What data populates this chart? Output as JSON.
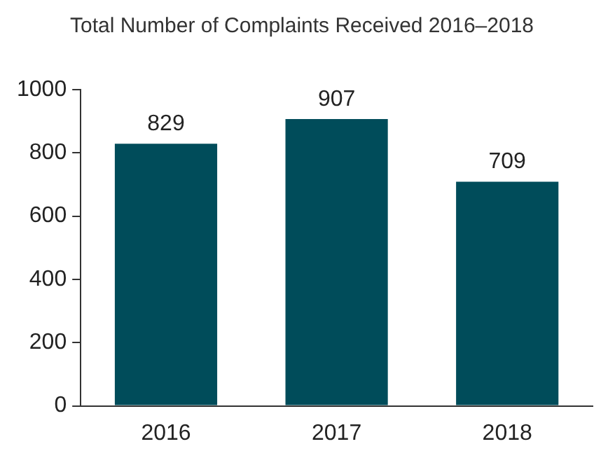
{
  "chart_data": {
    "type": "bar",
    "title": "Total Number of Complaints Received 2016–2018",
    "categories": [
      "2016",
      "2017",
      "2018"
    ],
    "values": [
      829,
      907,
      709
    ],
    "color": "#004c5a",
    "ylim": [
      0,
      1000
    ],
    "yticks": [
      0,
      200,
      400,
      600,
      800,
      1000
    ],
    "grid": false,
    "legend": false,
    "data_labels": true
  }
}
